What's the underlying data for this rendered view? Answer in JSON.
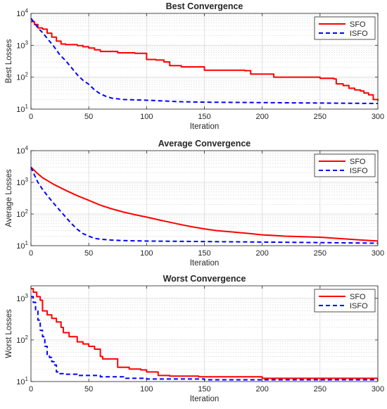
{
  "chart_data": [
    {
      "type": "line",
      "title": "Best Convergence",
      "xlabel": "Iteration",
      "ylabel": "Best Losses",
      "xlim": [
        0,
        300
      ],
      "ylim": [
        10,
        10000
      ],
      "yscale": "log",
      "grid": true,
      "legend_position": "top-right",
      "x_ticks": [
        "0",
        "50",
        "100",
        "150",
        "200",
        "250",
        "300"
      ],
      "y_ticks": [
        {
          "base": "10",
          "exp": "1"
        },
        {
          "base": "10",
          "exp": "2"
        },
        {
          "base": "10",
          "exp": "3"
        },
        {
          "base": "10",
          "exp": "4"
        }
      ],
      "series": [
        {
          "name": "SFO",
          "color": "#ff0000",
          "style": "solid",
          "step": true,
          "x": [
            0,
            3,
            6,
            10,
            14,
            18,
            22,
            26,
            30,
            40,
            45,
            50,
            55,
            60,
            75,
            90,
            100,
            108,
            115,
            120,
            130,
            150,
            185,
            190,
            210,
            250,
            262,
            264,
            270,
            275,
            280,
            285,
            288,
            292,
            296,
            300
          ],
          "y": [
            5500,
            4500,
            3500,
            3200,
            2400,
            1800,
            1350,
            1100,
            1050,
            980,
            900,
            820,
            720,
            640,
            580,
            560,
            360,
            345,
            300,
            230,
            210,
            165,
            160,
            125,
            100,
            92,
            88,
            62,
            55,
            45,
            40,
            37,
            32,
            28,
            20,
            18
          ]
        },
        {
          "name": "ISFO",
          "color": "#0000ff",
          "style": "dashed",
          "step": false,
          "x": [
            0,
            3,
            6,
            10,
            15,
            20,
            25,
            30,
            35,
            40,
            45,
            50,
            55,
            60,
            65,
            70,
            80,
            100,
            130,
            150,
            200,
            250,
            300
          ],
          "y": [
            7000,
            5000,
            3500,
            2500,
            1500,
            900,
            500,
            330,
            200,
            120,
            80,
            60,
            40,
            30,
            25,
            22,
            20,
            19,
            17,
            16.5,
            16,
            15.5,
            15
          ]
        }
      ]
    },
    {
      "type": "line",
      "title": "Average Convergence",
      "xlabel": "Iteration",
      "ylabel": "Average Losses",
      "xlim": [
        0,
        300
      ],
      "ylim": [
        10,
        10000
      ],
      "yscale": "log",
      "grid": true,
      "legend_position": "top-right",
      "x_ticks": [
        "0",
        "50",
        "100",
        "150",
        "200",
        "250",
        "300"
      ],
      "y_ticks": [
        {
          "base": "10",
          "exp": "1"
        },
        {
          "base": "10",
          "exp": "2"
        },
        {
          "base": "10",
          "exp": "3"
        },
        {
          "base": "10",
          "exp": "4"
        }
      ],
      "series": [
        {
          "name": "SFO",
          "color": "#ff0000",
          "style": "solid",
          "step": false,
          "x": [
            0,
            5,
            10,
            20,
            30,
            40,
            50,
            60,
            70,
            80,
            90,
            100,
            110,
            120,
            130,
            140,
            150,
            160,
            175,
            190,
            200,
            220,
            250,
            275,
            300
          ],
          "y": [
            3000,
            2000,
            1400,
            850,
            560,
            380,
            270,
            190,
            145,
            115,
            95,
            80,
            66,
            55,
            46,
            39,
            34,
            30,
            27,
            24,
            22,
            20,
            18.5,
            16,
            14
          ]
        },
        {
          "name": "ISFO",
          "color": "#0000ff",
          "style": "dashed",
          "step": false,
          "x": [
            0,
            3,
            6,
            10,
            15,
            20,
            25,
            30,
            35,
            40,
            45,
            50,
            55,
            60,
            70,
            80,
            100,
            150,
            200,
            250,
            300
          ],
          "y": [
            3000,
            1700,
            1000,
            600,
            350,
            210,
            130,
            80,
            50,
            33,
            24,
            20,
            17,
            16,
            15,
            14.5,
            14,
            13.5,
            13,
            12.5,
            12
          ]
        }
      ]
    },
    {
      "type": "line",
      "title": "Worst Convergence",
      "xlabel": "Iteration",
      "ylabel": "Worst Losses",
      "xlim": [
        0,
        300
      ],
      "ylim": [
        10,
        2000
      ],
      "yscale": "log",
      "grid": true,
      "legend_position": "top-right",
      "x_ticks": [
        "0",
        "50",
        "100",
        "150",
        "200",
        "250",
        "300"
      ],
      "y_ticks": [
        {
          "base": "10",
          "exp": "1"
        },
        {
          "base": "10",
          "exp": "2"
        },
        {
          "base": "10",
          "exp": "3"
        }
      ],
      "series": [
        {
          "name": "SFO",
          "color": "#ff0000",
          "style": "solid",
          "step": true,
          "x": [
            0,
            2,
            5,
            8,
            10,
            14,
            18,
            22,
            26,
            28,
            33,
            40,
            45,
            50,
            55,
            60,
            62,
            72,
            75,
            85,
            95,
            100,
            110,
            120,
            145,
            200,
            300
          ],
          "y": [
            1700,
            1400,
            1100,
            900,
            500,
            400,
            330,
            270,
            200,
            150,
            120,
            90,
            80,
            70,
            60,
            40,
            35,
            35,
            22,
            20,
            19,
            17,
            14,
            13.5,
            13,
            12,
            12
          ]
        },
        {
          "name": "ISFO",
          "color": "#0000ff",
          "style": "dashed",
          "step": true,
          "x": [
            0,
            2,
            4,
            6,
            8,
            10,
            12,
            14,
            16,
            18,
            20,
            22,
            25,
            30,
            40,
            60,
            80,
            100,
            150,
            200,
            300
          ],
          "y": [
            1100,
            800,
            500,
            300,
            170,
            120,
            70,
            45,
            38,
            30,
            25,
            17,
            15.5,
            15,
            14,
            13,
            12,
            11.5,
            11,
            11,
            11
          ]
        }
      ]
    }
  ]
}
